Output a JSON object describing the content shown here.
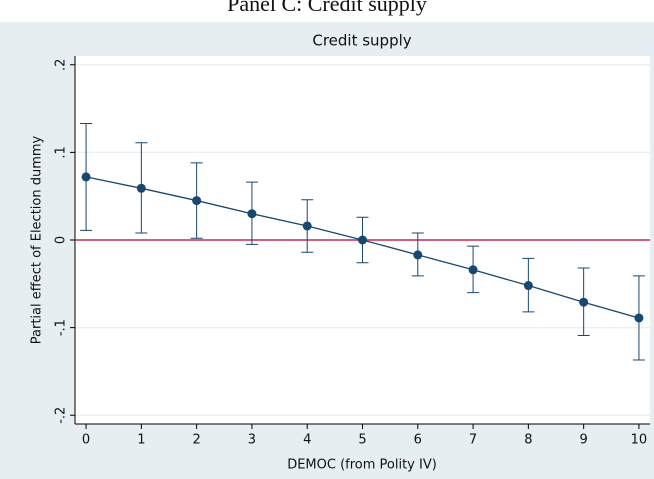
{
  "chart_data": {
    "type": "errorbar",
    "panel_title": "Panel C: Credit supply",
    "title": "Credit supply",
    "x_label": "DEMOC (from Polity IV)",
    "y_label": "Partial effect of Election dummy",
    "x": [
      0,
      1,
      2,
      3,
      4,
      5,
      6,
      7,
      8,
      9,
      10
    ],
    "series": [
      {
        "color": "#1a476f",
        "values": [
          0.072,
          0.059,
          0.045,
          0.03,
          0.016,
          0.0,
          -0.017,
          -0.034,
          -0.052,
          -0.071,
          -0.089
        ],
        "lower": [
          0.011,
          0.008,
          0.002,
          -0.005,
          -0.014,
          -0.026,
          -0.041,
          -0.06,
          -0.082,
          -0.109,
          -0.137
        ],
        "upper": [
          0.133,
          0.111,
          0.088,
          0.066,
          0.046,
          0.026,
          0.008,
          -0.007,
          -0.021,
          -0.032,
          -0.041
        ]
      }
    ],
    "reference_line": {
      "value": 0,
      "color": "#c10534"
    },
    "xlim": [
      -0.2,
      10.2
    ],
    "xticks": [
      0,
      1,
      2,
      3,
      4,
      5,
      6,
      7,
      8,
      9,
      10
    ],
    "ylim": [
      -0.21,
      0.21
    ],
    "yticks": [
      {
        "value": -0.2,
        "label": "-.2"
      },
      {
        "value": -0.1,
        "label": "-.1"
      },
      0,
      {
        "value": 0.1,
        "label": ".1"
      },
      {
        "value": 0.2,
        "label": ".2"
      }
    ],
    "grid": true
  }
}
